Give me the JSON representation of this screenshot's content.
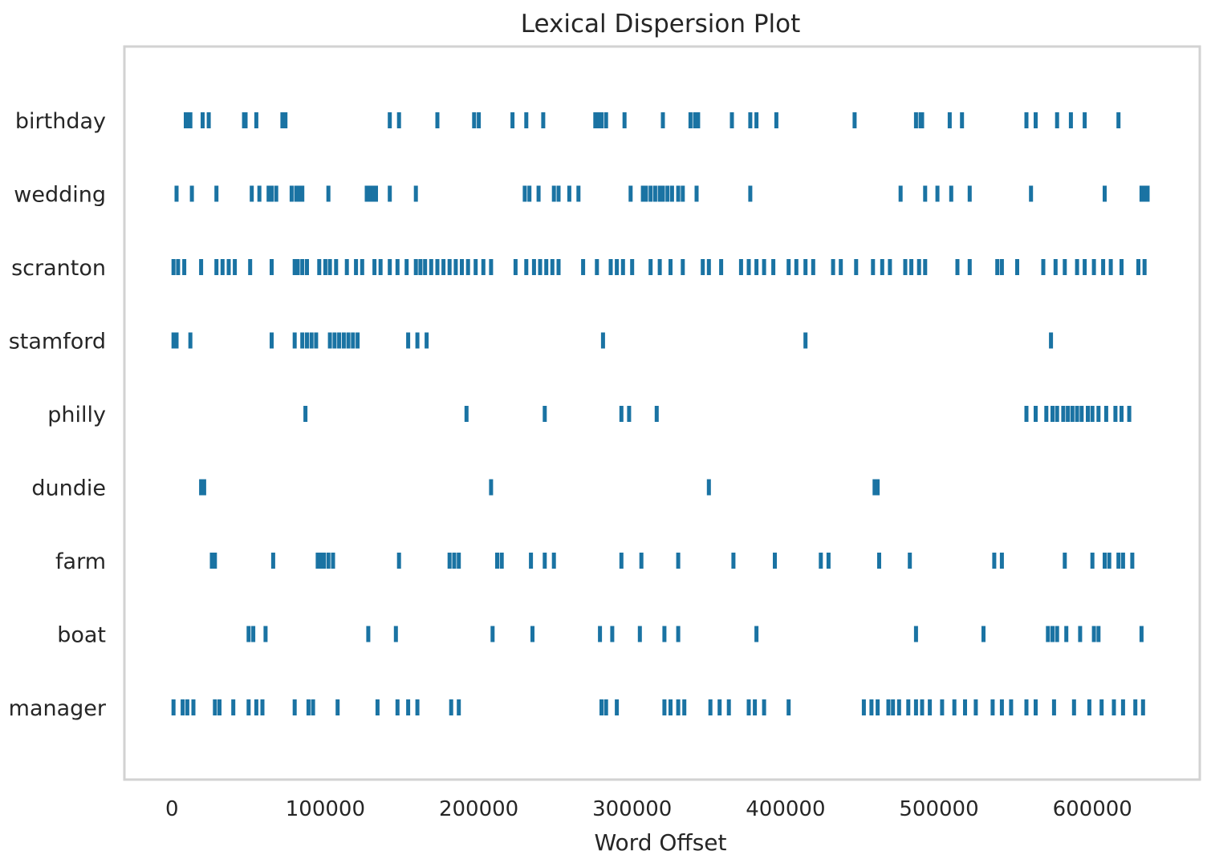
{
  "chart_data": {
    "type": "scatter",
    "title": "Lexical Dispersion Plot",
    "xlabel": "Word Offset",
    "ylabel": "",
    "xlim": [
      -31000,
      670000
    ],
    "xticks": [
      0,
      100000,
      200000,
      300000,
      400000,
      500000,
      600000
    ],
    "xtick_labels": [
      "0",
      "100000",
      "200000",
      "300000",
      "400000",
      "500000",
      "600000"
    ],
    "grid": false,
    "marker_color": "#1a73a3",
    "categories": [
      "birthday",
      "wedding",
      "scranton",
      "stamford",
      "philly",
      "dundie",
      "farm",
      "boat",
      "manager"
    ],
    "series": [
      {
        "name": "birthday",
        "x": [
          9000,
          11000,
          12000,
          20000,
          24000,
          47000,
          48000,
          55000,
          72000,
          74000,
          142000,
          148000,
          173000,
          197000,
          200000,
          222000,
          231000,
          242000,
          276000,
          278000,
          280000,
          283000,
          295000,
          320000,
          338000,
          341000,
          343000,
          365000,
          377000,
          381000,
          394000,
          445000,
          485000,
          488000,
          489000,
          507000,
          515000,
          557000,
          563000,
          577000,
          586000,
          595000,
          617000
        ]
      },
      {
        "name": "wedding",
        "x": [
          3000,
          13000,
          29000,
          52000,
          57000,
          63000,
          65000,
          68000,
          78000,
          81000,
          83000,
          85000,
          102000,
          127000,
          129000,
          131000,
          133000,
          142000,
          159000,
          230000,
          233000,
          239000,
          249000,
          252000,
          259000,
          265000,
          299000,
          307000,
          309000,
          312000,
          315000,
          318000,
          320000,
          323000,
          326000,
          330000,
          333000,
          342000,
          377000,
          475000,
          491000,
          499000,
          508000,
          520000,
          560000,
          608000,
          632000,
          634000,
          636000
        ]
      },
      {
        "name": "scranton",
        "x": [
          1000,
          4000,
          8000,
          19000,
          29000,
          33000,
          37000,
          41000,
          51000,
          65000,
          80000,
          82000,
          85000,
          88000,
          96000,
          100000,
          103000,
          107000,
          114000,
          120000,
          124000,
          132000,
          136000,
          142000,
          147000,
          153000,
          159000,
          162000,
          165000,
          169000,
          173000,
          177000,
          181000,
          185000,
          189000,
          193000,
          198000,
          203000,
          208000,
          224000,
          231000,
          236000,
          240000,
          244000,
          248000,
          252000,
          268000,
          277000,
          286000,
          290000,
          294000,
          300000,
          312000,
          318000,
          325000,
          333000,
          346000,
          350000,
          358000,
          371000,
          376000,
          381000,
          386000,
          392000,
          402000,
          407000,
          413000,
          418000,
          431000,
          436000,
          446000,
          457000,
          463000,
          468000,
          478000,
          482000,
          487000,
          491000,
          512000,
          520000,
          538000,
          541000,
          551000,
          568000,
          576000,
          582000,
          590000,
          595000,
          601000,
          607000,
          612000,
          619000,
          630000,
          634000
        ]
      },
      {
        "name": "stamford",
        "x": [
          1000,
          3000,
          12000,
          65000,
          80000,
          85000,
          88000,
          91000,
          94000,
          103000,
          106000,
          109000,
          112000,
          115000,
          118000,
          121000,
          154000,
          160000,
          166000,
          281000,
          413000,
          573000
        ]
      },
      {
        "name": "philly",
        "x": [
          87000,
          192000,
          243000,
          293000,
          298000,
          316000,
          557000,
          563000,
          570000,
          574000,
          577000,
          581000,
          584000,
          587000,
          590000,
          593000,
          597000,
          600000,
          604000,
          609000,
          615000,
          619000,
          624000
        ]
      },
      {
        "name": "dundie",
        "x": [
          19000,
          21000,
          208000,
          350000,
          458000,
          460000
        ]
      },
      {
        "name": "farm",
        "x": [
          26000,
          28000,
          66000,
          95000,
          97000,
          99000,
          102000,
          105000,
          148000,
          181000,
          184000,
          187000,
          212000,
          215000,
          234000,
          243000,
          249000,
          293000,
          306000,
          330000,
          366000,
          393000,
          423000,
          428000,
          461000,
          481000,
          536000,
          541000,
          582000,
          600000,
          608000,
          611000,
          617000,
          620000,
          626000
        ]
      },
      {
        "name": "boat",
        "x": [
          50000,
          53000,
          61000,
          128000,
          146000,
          209000,
          235000,
          279000,
          287000,
          305000,
          321000,
          330000,
          381000,
          485000,
          529000,
          571000,
          574000,
          577000,
          583000,
          592000,
          601000,
          604000,
          632000
        ]
      },
      {
        "name": "manager",
        "x": [
          1000,
          7000,
          10000,
          14000,
          28000,
          31000,
          40000,
          50000,
          55000,
          59000,
          80000,
          89000,
          92000,
          108000,
          134000,
          147000,
          154000,
          160000,
          182000,
          187000,
          280000,
          283000,
          290000,
          321000,
          325000,
          330000,
          334000,
          351000,
          357000,
          363000,
          376000,
          380000,
          386000,
          402000,
          451000,
          456000,
          460000,
          467000,
          470000,
          474000,
          480000,
          485000,
          489000,
          494000,
          502000,
          510000,
          517000,
          524000,
          535000,
          541000,
          547000,
          557000,
          563000,
          575000,
          588000,
          598000,
          606000,
          614000,
          620000,
          628000,
          633000
        ]
      }
    ]
  }
}
